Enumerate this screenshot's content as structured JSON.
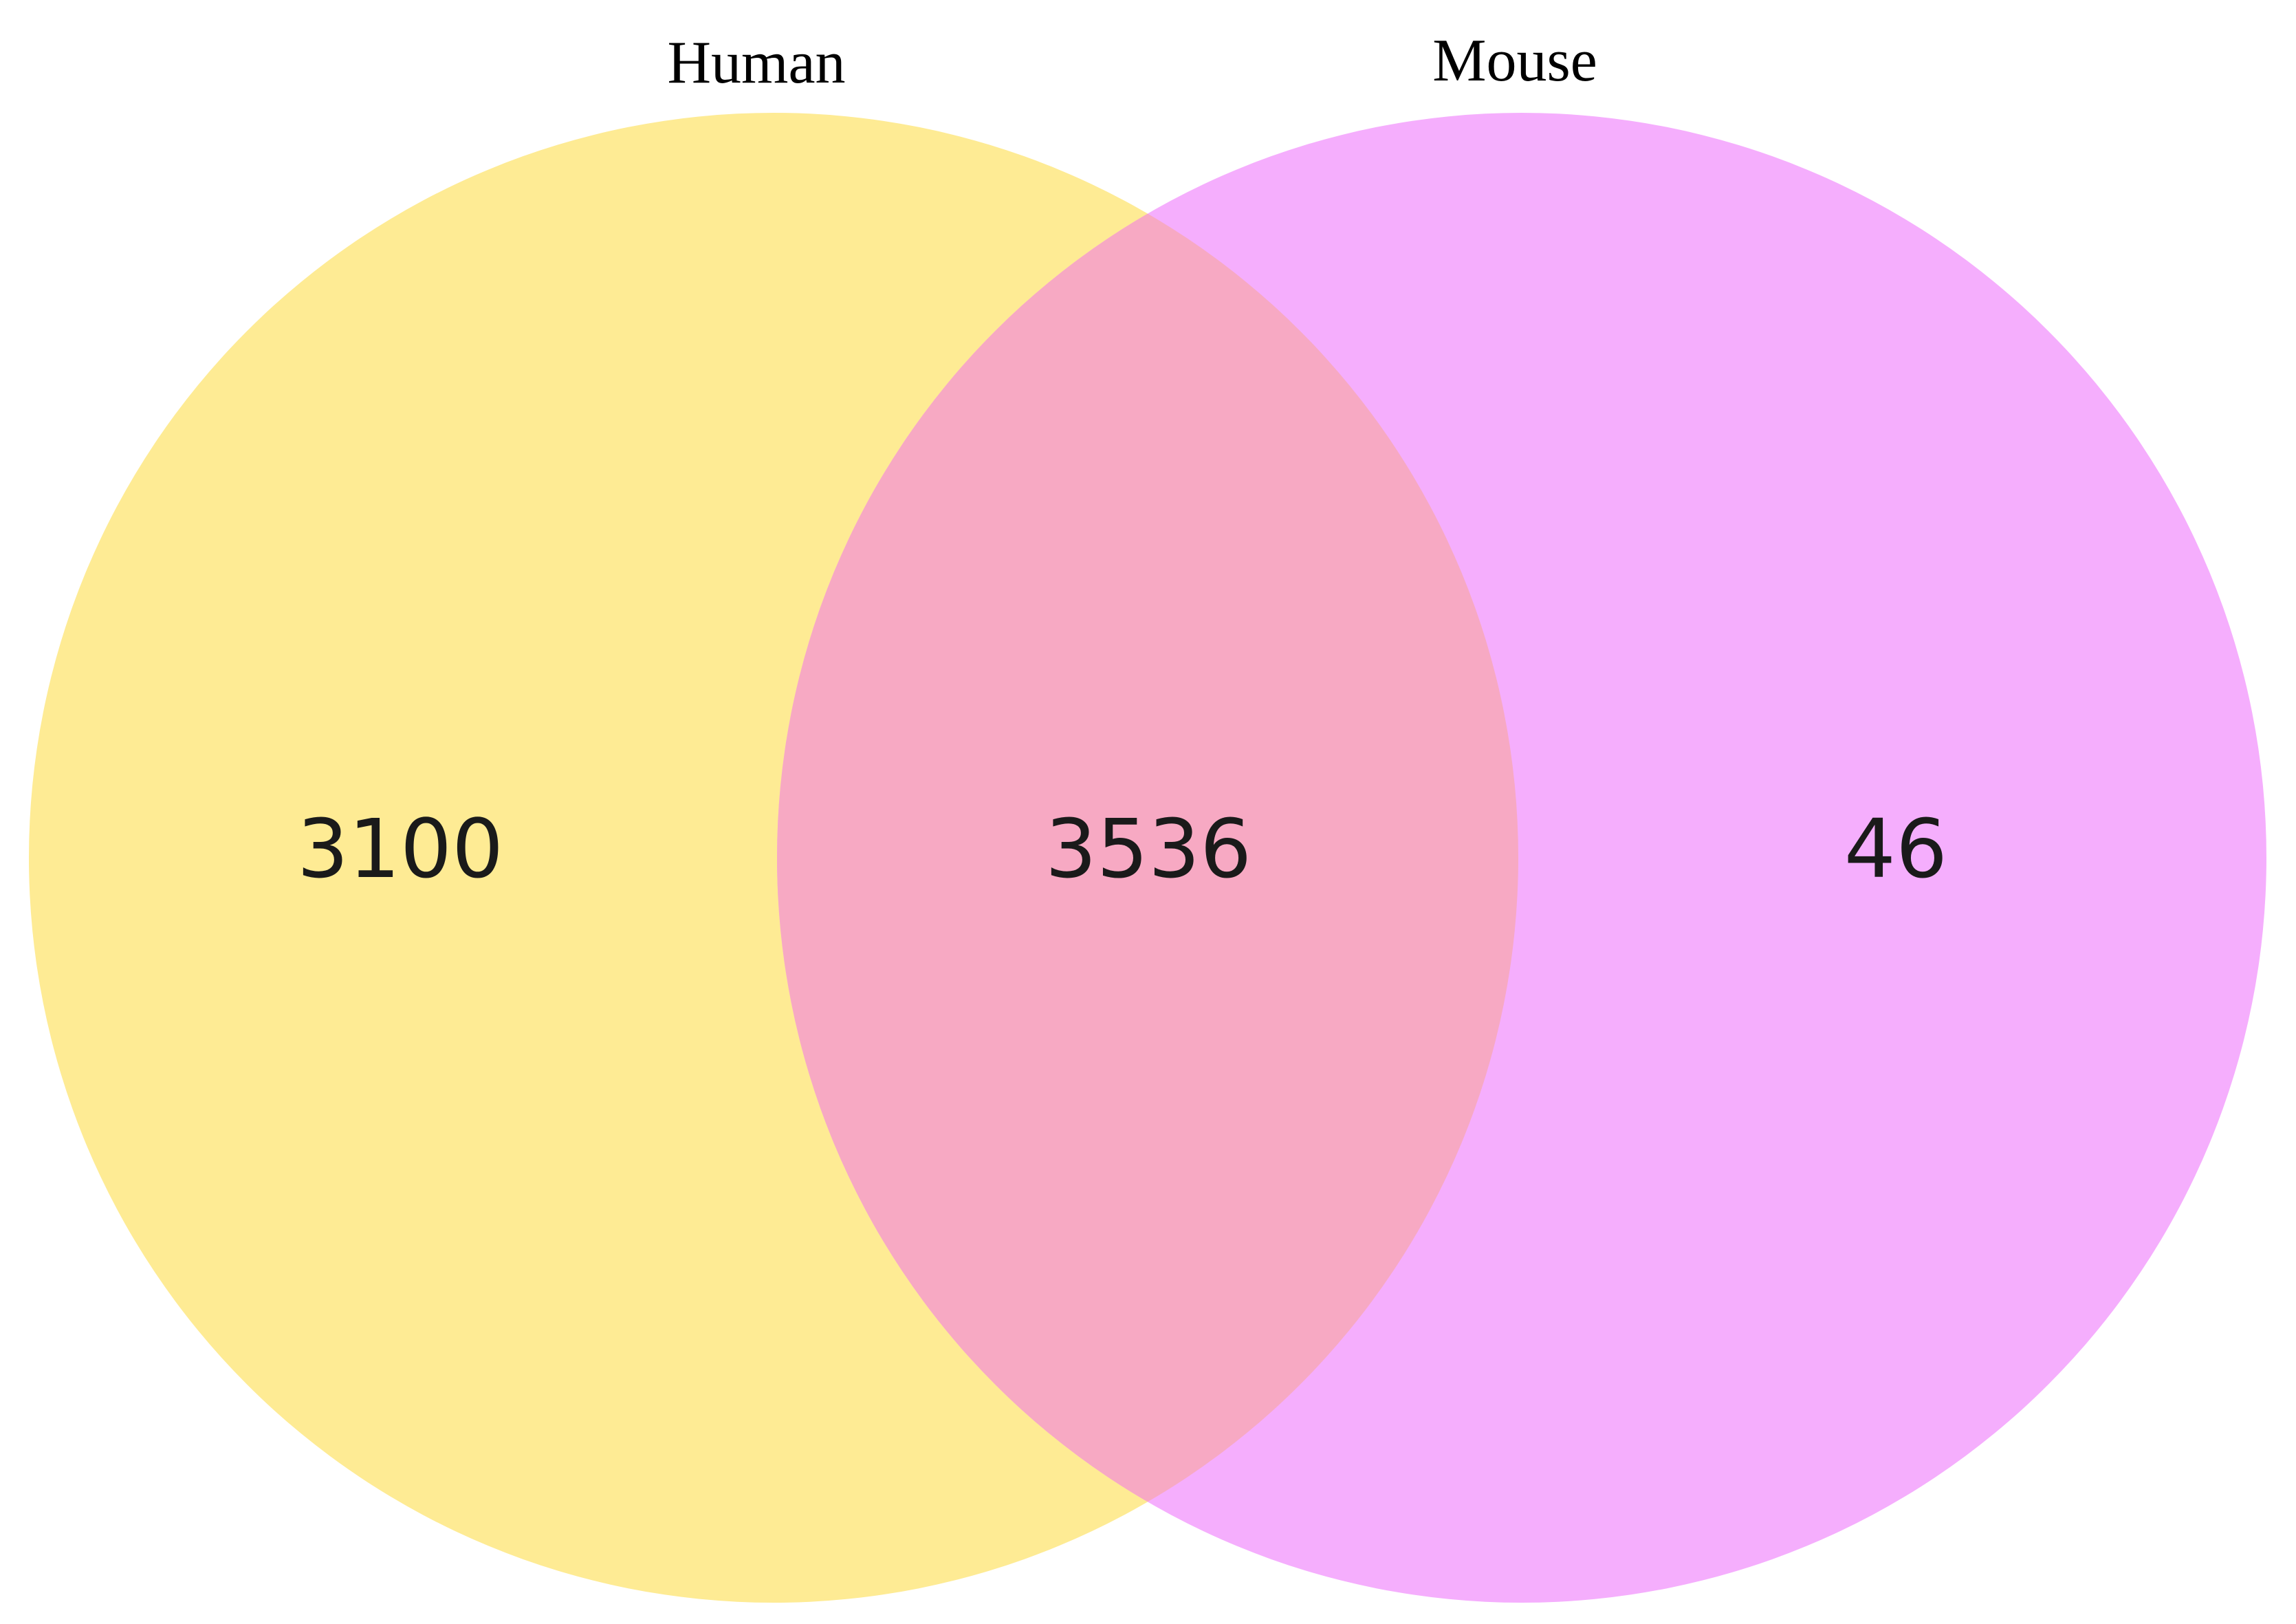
{
  "venn": {
    "sets": [
      {
        "name": "Human",
        "color": "#FEEB94"
      },
      {
        "name": "Mouse",
        "color": "#F5AEFD"
      }
    ],
    "overlap_color": "#F7A9C3",
    "counts": {
      "human_only": "3100",
      "both": "3536",
      "mouse_only": "46"
    }
  }
}
